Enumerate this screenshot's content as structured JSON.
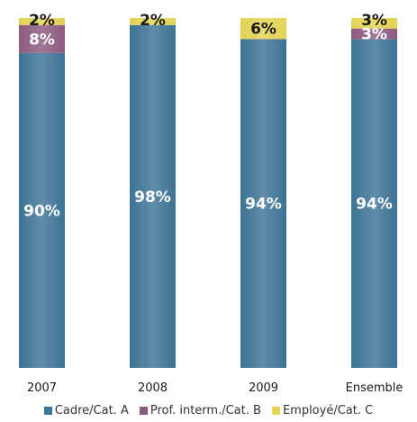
{
  "chart_data": {
    "type": "bar",
    "stacked": true,
    "percent": true,
    "categories": [
      "2007",
      "2008",
      "2009",
      "Ensemble"
    ],
    "series": [
      {
        "name": "Cadre/Cat. A",
        "color": "#3d7394",
        "values": [
          90,
          98,
          94,
          94
        ],
        "labels": [
          "90%",
          "98%",
          "94%",
          "94%"
        ]
      },
      {
        "name": "Prof. interm./Cat. B",
        "color": "#8c5a7e",
        "values": [
          8,
          0,
          0,
          3
        ],
        "labels": [
          "8%",
          "",
          "",
          "3%"
        ]
      },
      {
        "name": "Employé/Cat. C",
        "color": "#e2d352",
        "values": [
          2,
          2,
          6,
          3
        ],
        "labels": [
          "2%",
          "2%",
          "6%",
          "3%"
        ]
      }
    ],
    "ylim": [
      0,
      100
    ],
    "grid": false,
    "legend_position": "bottom",
    "title": "",
    "xlabel": "",
    "ylabel": ""
  }
}
